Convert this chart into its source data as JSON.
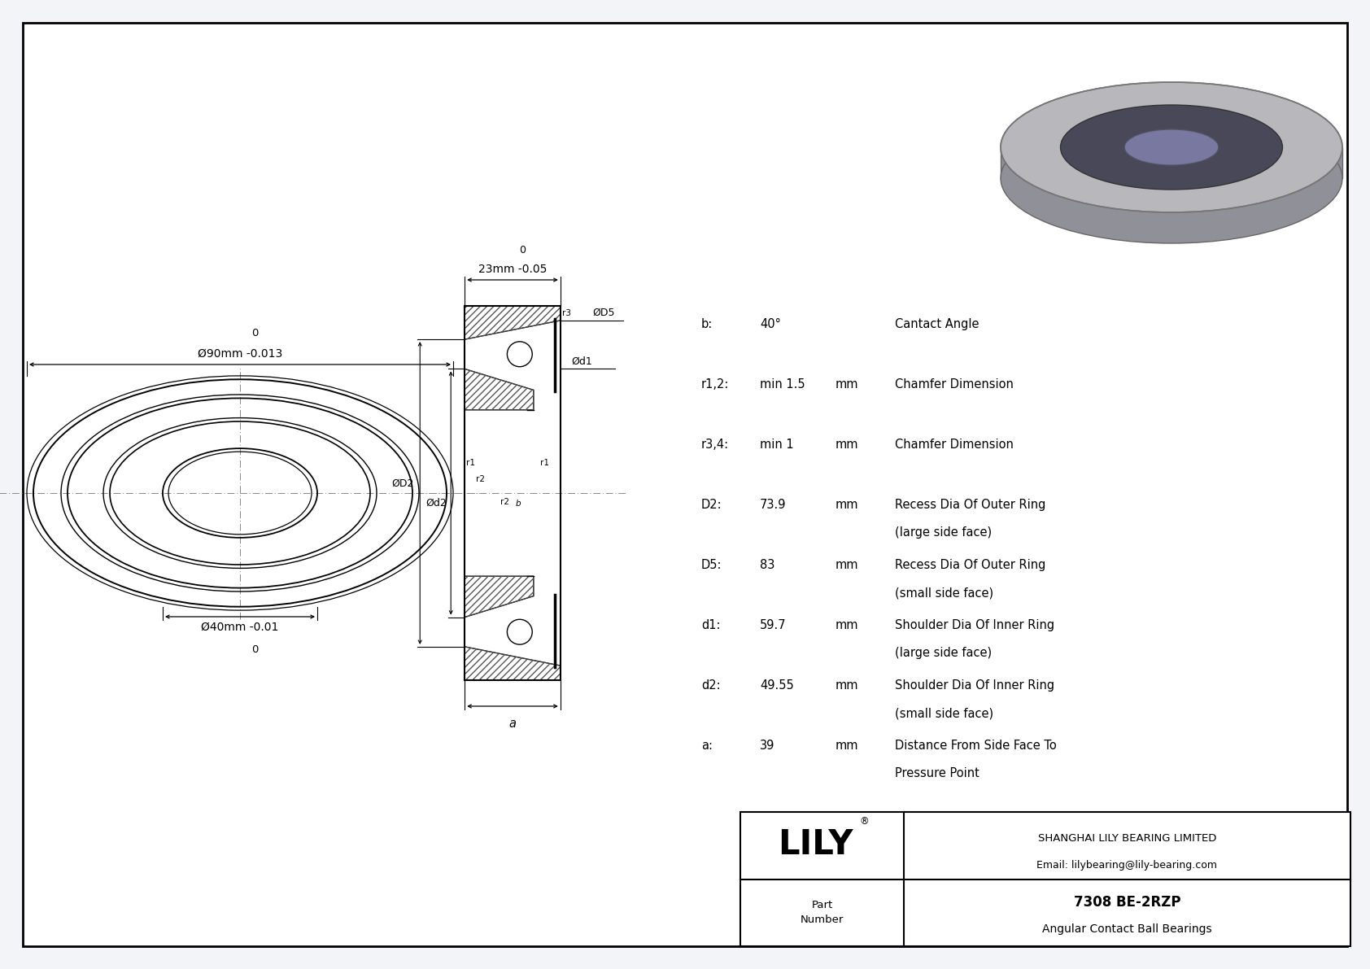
{
  "part_number": "7308 BE-2RZP",
  "part_type": "Angular Contact Ball Bearings",
  "company": "SHANGHAI LILY BEARING LIMITED",
  "email": "Email: lilybearing@lily-bearing.com",
  "params": [
    {
      "name": "b:",
      "value": "40°",
      "unit": "",
      "desc": "Cantact Angle",
      "desc2": ""
    },
    {
      "name": "r1,2:",
      "value": "min 1.5",
      "unit": "mm",
      "desc": "Chamfer Dimension",
      "desc2": ""
    },
    {
      "name": "r3,4:",
      "value": "min 1",
      "unit": "mm",
      "desc": "Chamfer Dimension",
      "desc2": ""
    },
    {
      "name": "D2:",
      "value": "73.9",
      "unit": "mm",
      "desc": "Recess Dia Of Outer Ring",
      "desc2": "(large side face)"
    },
    {
      "name": "D5:",
      "value": "83",
      "unit": "mm",
      "desc": "Recess Dia Of Outer Ring",
      "desc2": "(small side face)"
    },
    {
      "name": "d1:",
      "value": "59.7",
      "unit": "mm",
      "desc": "Shoulder Dia Of Inner Ring",
      "desc2": "(large side face)"
    },
    {
      "name": "d2:",
      "value": "49.55",
      "unit": "mm",
      "desc": "Shoulder Dia Of Inner Ring",
      "desc2": "(small side face)"
    },
    {
      "name": "a:",
      "value": "39",
      "unit": "mm",
      "desc": "Distance From Side Face To",
      "desc2": "Pressure Point"
    }
  ],
  "lc": "#000000",
  "bg": "#f2f4f7",
  "draw_bg": "#ffffff",
  "grey_line": "#888888",
  "hatch_ec": "#555555"
}
